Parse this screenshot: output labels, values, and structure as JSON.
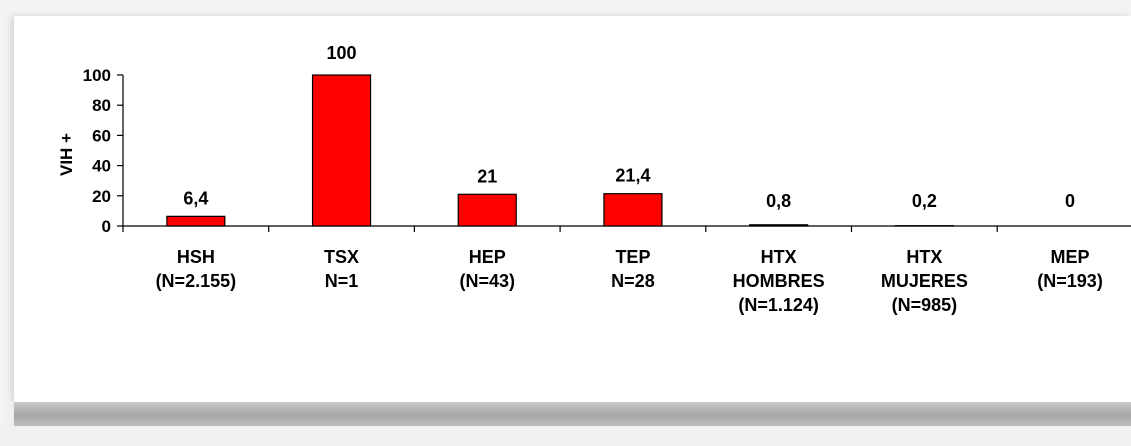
{
  "chart_data": {
    "type": "bar",
    "categories": [
      [
        "HSH",
        "(N=2.155)"
      ],
      [
        "TSX",
        "N=1"
      ],
      [
        "HEP",
        "(N=43)"
      ],
      [
        "TEP",
        "N=28"
      ],
      [
        "HTX",
        "HOMBRES",
        "(N=1.124)"
      ],
      [
        "HTX",
        "MUJERES",
        "(N=985)"
      ],
      [
        "MEP",
        "(N=193)"
      ]
    ],
    "values": [
      6.4,
      100,
      21,
      21.4,
      0.8,
      0.2,
      0
    ],
    "data_labels": [
      "6,4",
      "100",
      "21",
      "21,4",
      "0,8",
      "0,2",
      "0"
    ],
    "ylabel": "VIH +",
    "ylim": [
      0,
      100
    ],
    "yticks": [
      0,
      20,
      40,
      60,
      80,
      100
    ],
    "bar_color": "#ff0000",
    "grid": false,
    "legend": "none"
  }
}
